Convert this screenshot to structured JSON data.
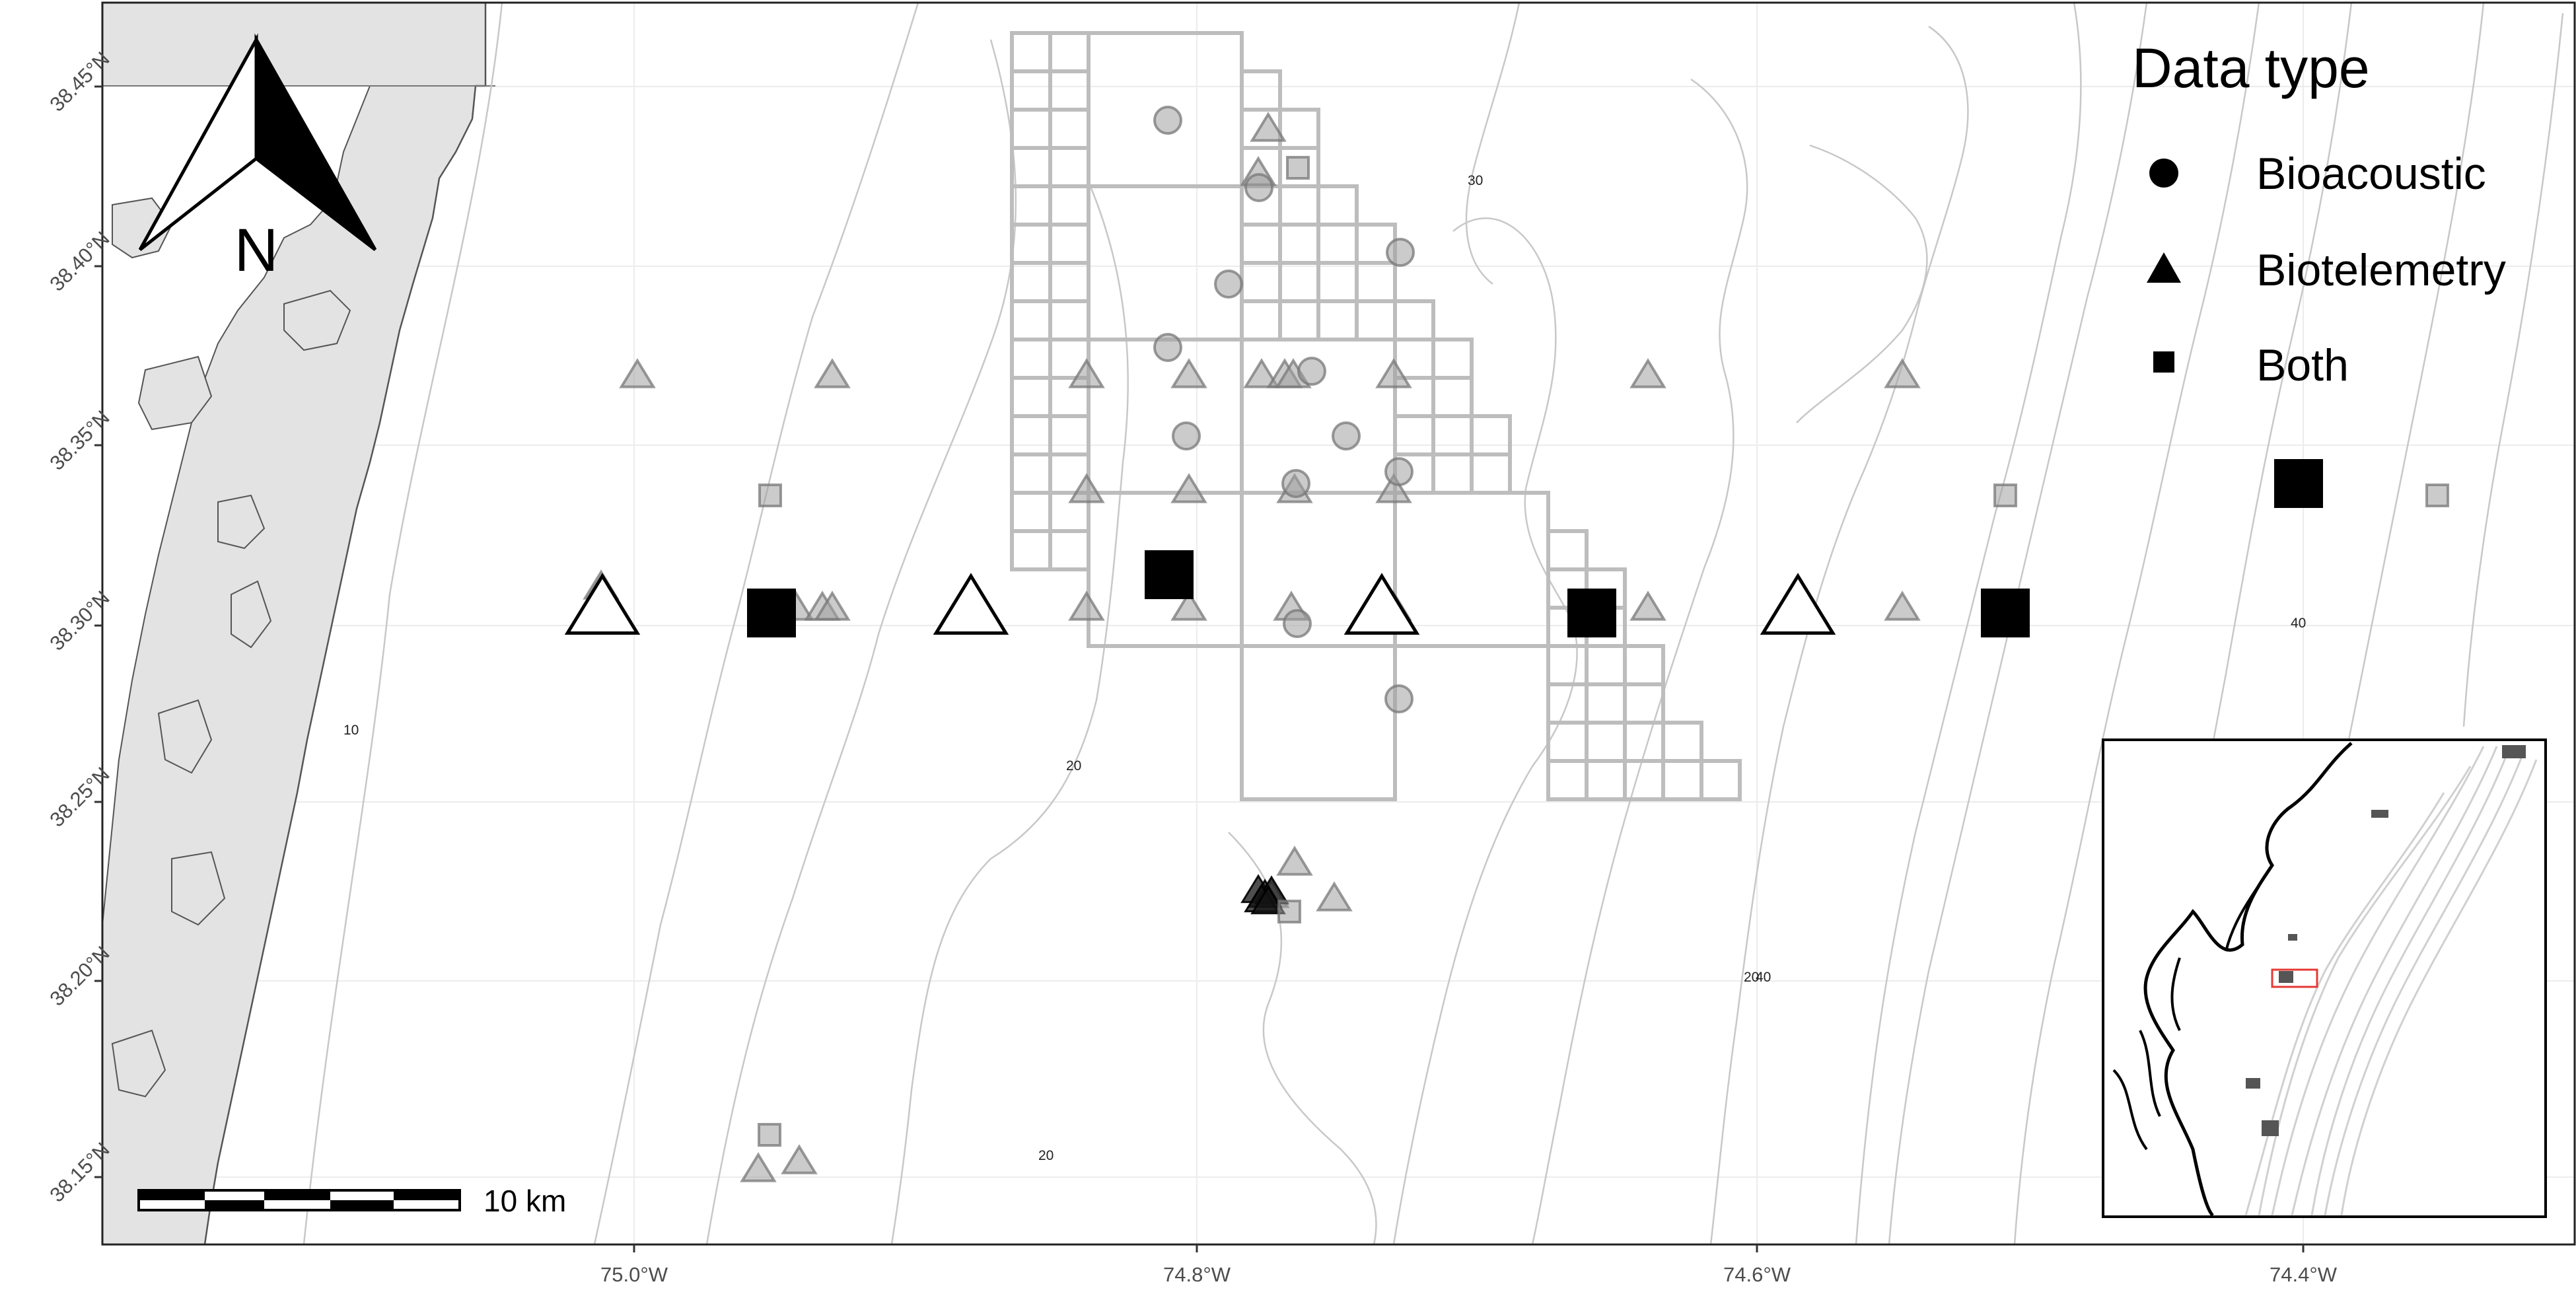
{
  "map": {
    "x_ticks": [
      "75.0°W",
      "74.8°W",
      "74.6°W",
      "74.4°W"
    ],
    "y_ticks": [
      "38.15°N",
      "38.20°N",
      "38.25°N",
      "38.30°N",
      "38.35°N",
      "38.40°N",
      "38.45°N"
    ],
    "contour_labels": [
      "10",
      "20",
      "20",
      "20",
      "30",
      "40",
      "40"
    ],
    "north_label": "N",
    "scale_label": "10 km"
  },
  "legend": {
    "title": "Data type",
    "items": [
      {
        "label": "Bioacoustic",
        "shape": "circle"
      },
      {
        "label": "Biotelemetry",
        "shape": "triangle"
      },
      {
        "label": "Both",
        "shape": "square"
      }
    ]
  },
  "colors": {
    "land": "#e3e3e3",
    "grid_cells": "#bdbdbd",
    "contours": "#c8c8c8",
    "faded_markers": "#9e9e9e",
    "highlight_markers": "#000000",
    "inset_extent": "#e53935"
  },
  "icons": [
    "north-arrow-icon",
    "scale-bar-icon"
  ]
}
